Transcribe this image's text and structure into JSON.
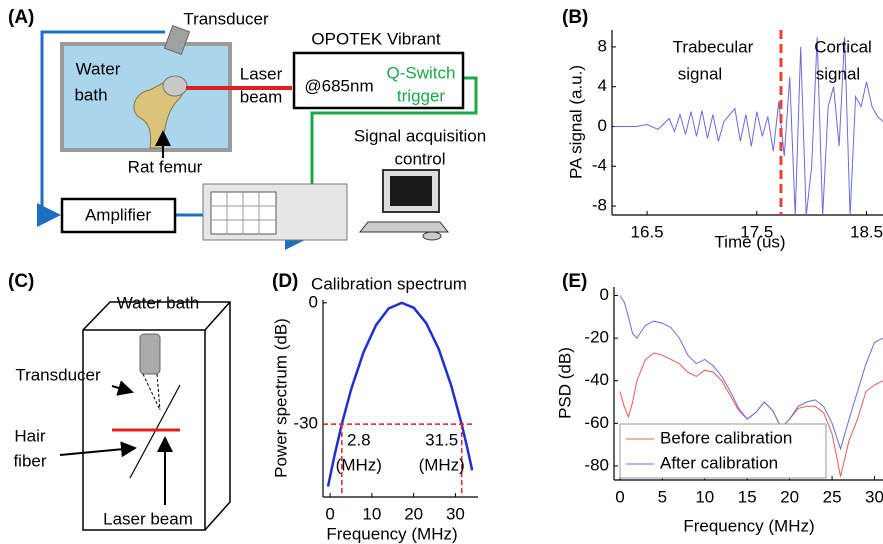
{
  "panel_labels": [
    "(A)",
    "(B)",
    "(C)",
    "(D)",
    "(E)"
  ],
  "diagram_a": {
    "transducer": "Transducer",
    "water": "Water",
    "bath": "bath",
    "laser": "Laser",
    "beam": "beam",
    "laser_name": "OPOTEK Vibrant",
    "wavelength": "@685nm",
    "qswitch": "Q-Switch",
    "trigger": "trigger",
    "acquisition": "Signal acquisition",
    "control": "control",
    "femur": "Rat femur",
    "amplifier": "Amplifier"
  },
  "diagram_c": {
    "water_bath": "Water bath",
    "transducer": "Transducer",
    "hair": "Hair",
    "fiber": "fiber",
    "laser_beam": "Laser beam"
  },
  "chart_data": [
    {
      "type": "line",
      "xlabel": "Time (us)",
      "ylabel": "PA signal (a.u.)",
      "x": [
        16.2,
        16.4,
        16.5,
        16.6,
        16.7,
        16.75,
        16.8,
        16.85,
        16.9,
        16.95,
        17.0,
        17.05,
        17.1,
        17.15,
        17.2,
        17.3,
        17.35,
        17.4,
        17.45,
        17.5,
        17.55,
        17.6,
        17.65,
        17.7,
        17.75,
        17.8,
        17.85,
        17.9,
        17.95,
        18.0,
        18.05,
        18.1,
        18.15,
        18.2,
        18.25,
        18.3,
        18.35,
        18.4,
        18.45,
        18.5,
        18.55,
        18.6,
        18.65
      ],
      "series": [
        {
          "color": "#6b6bdc",
          "values": [
            0,
            0,
            0.2,
            -0.3,
            0.8,
            -0.5,
            1.2,
            -0.8,
            1.5,
            -1,
            1.6,
            -1.2,
            1.2,
            -1.5,
            0.5,
            1.8,
            -1.5,
            1.2,
            -2,
            1.5,
            -1,
            1,
            -2.5,
            2.5,
            -3,
            5,
            -9,
            8,
            -9,
            -4,
            9,
            -9,
            2,
            4,
            -2,
            9,
            -9,
            3,
            2,
            4.5,
            2,
            1,
            0.5
          ]
        }
      ],
      "xlim": [
        16.18,
        18.65
      ],
      "ylim": [
        -8.9,
        9.7
      ],
      "xticks": [
        16.5,
        17.5,
        18.5
      ],
      "yticks": [
        8,
        4,
        0,
        -4,
        -8
      ],
      "vline": 17.72,
      "vline_color": "#e8403a",
      "annotations": [
        "Trabecular",
        "signal",
        "Cortical",
        "signal"
      ]
    },
    {
      "type": "line",
      "title": "Calibration spectrum",
      "xlabel": "Frequency (MHz)",
      "ylabel": "Power spectrum (dB)",
      "x": [
        -0.5,
        1,
        2.8,
        5,
        8,
        11,
        14,
        17.15,
        20,
        23,
        26,
        29,
        31.5,
        33,
        34
      ],
      "series": [
        {
          "color": "#1f2fd0",
          "values": [
            -45.4,
            -38,
            -30,
            -21.5,
            -12.2,
            -5.5,
            -1.4,
            0,
            -1.2,
            -5,
            -11.4,
            -20.5,
            -30,
            -36.6,
            -41.4
          ]
        }
      ],
      "xlim": [
        -1.7,
        35.4
      ],
      "ylim": [
        -48,
        0.7
      ],
      "xticks": [
        0,
        10,
        20,
        30
      ],
      "yticks": [
        0,
        -30
      ],
      "threshold": -30,
      "marker_color": "#e0202a",
      "markers": [
        {
          "x": 2.8,
          "label": "2.8",
          "unit": "(MHz)"
        },
        {
          "x": 31.5,
          "label": "31.5",
          "unit": "(MHz)"
        }
      ]
    },
    {
      "type": "line",
      "xlabel": "Frequency (MHz)",
      "ylabel": "PSD  (dB)",
      "x": [
        0,
        0.5,
        1,
        1.5,
        2,
        3,
        4,
        5,
        6,
        7,
        8,
        9,
        10,
        11,
        12,
        13,
        14,
        15,
        16,
        17,
        18,
        19,
        20,
        21,
        22,
        23,
        24,
        25,
        26,
        27,
        28,
        29,
        30,
        31
      ],
      "series": [
        {
          "name": "Before calibration",
          "color": "#e85a5a",
          "values": [
            -45,
            -52,
            -57,
            -50,
            -40,
            -30,
            -27,
            -28,
            -30,
            -32,
            -36,
            -38,
            -35,
            -36,
            -40,
            -47,
            -54,
            -58,
            -55,
            -50,
            -54,
            -62,
            -58,
            -53,
            -52,
            -52,
            -55,
            -65,
            -85,
            -68,
            -58,
            -45,
            -42,
            -40
          ]
        },
        {
          "name": "After calibration",
          "color": "#6b6bdc",
          "values": [
            0,
            -3,
            -10,
            -18,
            -20,
            -14,
            -12,
            -13,
            -15,
            -20,
            -28,
            -32,
            -30,
            -33,
            -38,
            -45,
            -53,
            -58,
            -55,
            -50,
            -54,
            -62,
            -58,
            -52,
            -50,
            -49,
            -52,
            -60,
            -72,
            -58,
            -45,
            -32,
            -22,
            -20
          ]
        }
      ],
      "xlim": [
        -0.7,
        31
      ],
      "ylim": [
        -86.6,
        4
      ],
      "xticks": [
        0,
        5,
        10,
        15,
        20,
        25,
        30
      ],
      "yticks": [
        0,
        -20,
        -40,
        -60,
        -80
      ],
      "legend": "lower right"
    }
  ]
}
